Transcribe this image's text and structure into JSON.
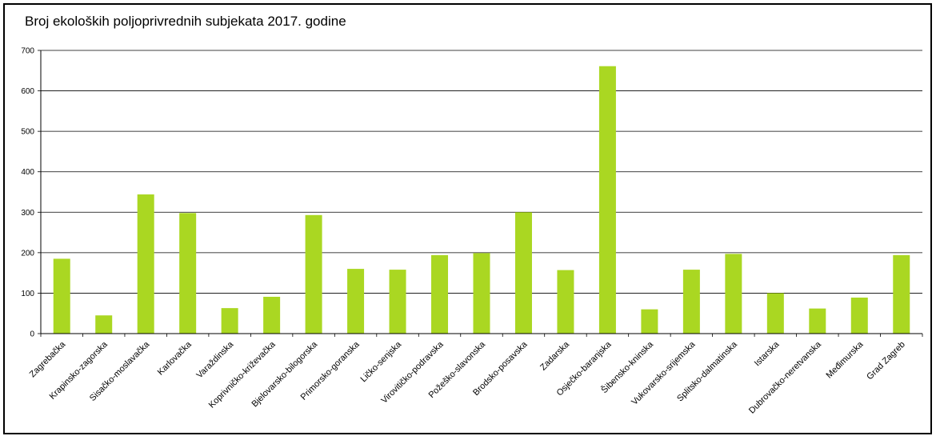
{
  "chart_data": {
    "type": "bar",
    "title": "Broj ekoloških poljoprivrednih subjekata 2017. godine",
    "xlabel": "",
    "ylabel": "",
    "ylim": [
      0,
      700
    ],
    "yticks": [
      "0",
      "100",
      "200",
      "300",
      "400",
      "500",
      "600",
      "700"
    ],
    "grid": true,
    "legend": "none",
    "bar_color": "#aad722",
    "categories": [
      "Zagrebačka",
      "Krapinsko-zagorska",
      "Sisačko-moslavačka",
      "Karlovačka",
      "Varaždinska",
      "Koprivničko-križevačka",
      "Bjelovarsko-bilogorska",
      "Primorsko-goranska",
      "Ličko-senjska",
      "Virovitičko-podravska",
      "Požeško-slavonska",
      "Brodsko-posavska",
      "Zadarska",
      "Osječko-baranjska",
      "Šibensko-kninska",
      "Vukovarsko-srijemska",
      "Splitsko-dalmatinska",
      "Istarska",
      "Dubrovačko-neretvanska",
      "Međimurska",
      "Grad Zagreb"
    ],
    "values": [
      185,
      45,
      344,
      298,
      63,
      91,
      293,
      160,
      158,
      194,
      199,
      300,
      157,
      661,
      60,
      158,
      197,
      100,
      62,
      89,
      194
    ]
  }
}
